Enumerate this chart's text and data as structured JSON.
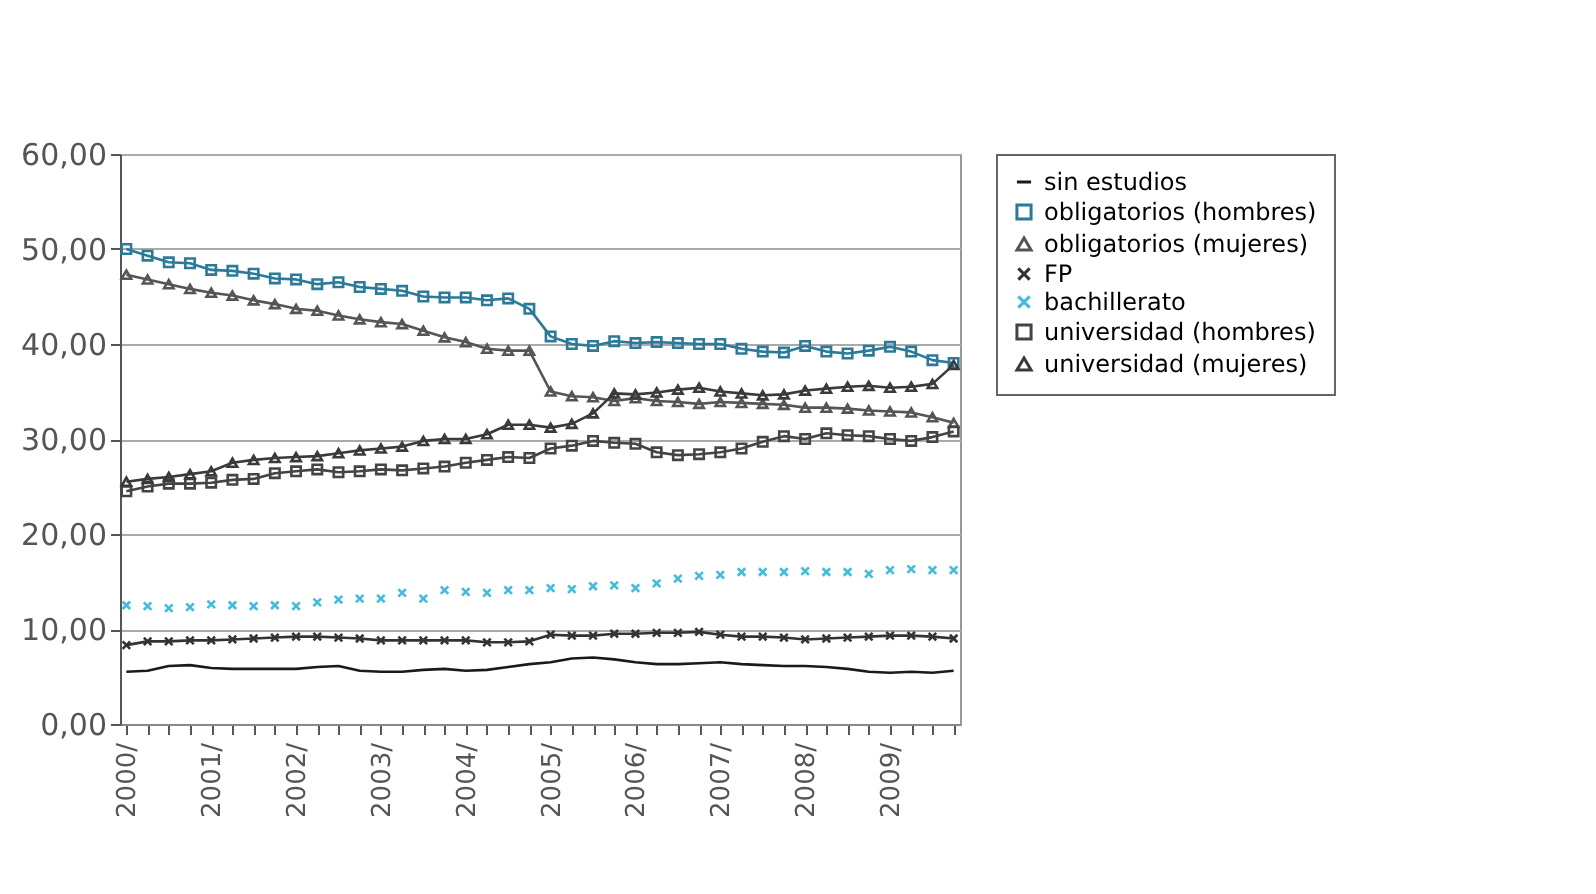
{
  "chart_data": {
    "type": "line",
    "categories": [
      "2000/",
      null,
      null,
      null,
      "2001/",
      null,
      null,
      null,
      "2002/",
      null,
      null,
      null,
      "2003/",
      null,
      null,
      null,
      "2004/",
      null,
      null,
      null,
      "2005/",
      null,
      null,
      null,
      "2006/",
      null,
      null,
      null,
      "2007/",
      null,
      null,
      null,
      "2008/",
      null,
      null,
      null,
      "2009/",
      null,
      null,
      null
    ],
    "series": [
      {
        "name": "sin estudios",
        "marker": "none",
        "color": "#1a1a1a",
        "values": [
          5.5,
          5.6,
          6.1,
          6.2,
          5.9,
          5.8,
          5.8,
          5.8,
          5.8,
          6.0,
          6.1,
          5.6,
          5.5,
          5.5,
          5.7,
          5.8,
          5.6,
          5.7,
          6.0,
          6.3,
          6.5,
          6.9,
          7.0,
          6.8,
          6.5,
          6.3,
          6.3,
          6.4,
          6.5,
          6.3,
          6.2,
          6.1,
          6.1,
          6.0,
          5.8,
          5.5,
          5.4,
          5.5,
          5.4,
          5.6
        ]
      },
      {
        "name": "obligatorios (hombres)",
        "marker": "square",
        "color": "#2b7a9a",
        "values": [
          50.0,
          49.3,
          48.6,
          48.5,
          47.8,
          47.7,
          47.4,
          46.9,
          46.8,
          46.3,
          46.5,
          46.0,
          45.8,
          45.6,
          45.0,
          44.9,
          44.9,
          44.6,
          44.8,
          43.7,
          40.8,
          40.0,
          39.8,
          40.3,
          40.1,
          40.2,
          40.1,
          40.0,
          40.0,
          39.5,
          39.2,
          39.1,
          39.8,
          39.2,
          39.0,
          39.3,
          39.7,
          39.2,
          38.3,
          38.0
        ]
      },
      {
        "name": "obligatorios (mujeres)",
        "marker": "triangle",
        "color": "#555555",
        "values": [
          47.3,
          46.8,
          46.3,
          45.8,
          45.4,
          45.1,
          44.6,
          44.2,
          43.7,
          43.5,
          43.0,
          42.6,
          42.3,
          42.1,
          41.4,
          40.7,
          40.2,
          39.5,
          39.3,
          39.3,
          35.0,
          34.5,
          34.4,
          34.0,
          34.3,
          34.0,
          33.9,
          33.7,
          33.9,
          33.8,
          33.7,
          33.6,
          33.3,
          33.3,
          33.2,
          33.0,
          32.9,
          32.8,
          32.3,
          31.7
        ]
      },
      {
        "name": "FP",
        "marker": "cross",
        "color": "#333333",
        "values": [
          8.3,
          8.7,
          8.7,
          8.8,
          8.8,
          8.9,
          9.0,
          9.1,
          9.2,
          9.2,
          9.1,
          9.0,
          8.8,
          8.8,
          8.8,
          8.8,
          8.8,
          8.6,
          8.6,
          8.7,
          9.4,
          9.3,
          9.3,
          9.5,
          9.5,
          9.6,
          9.6,
          9.7,
          9.4,
          9.2,
          9.2,
          9.1,
          8.9,
          9.0,
          9.1,
          9.2,
          9.3,
          9.3,
          9.2,
          9.0
        ]
      },
      {
        "name": "bachillerato",
        "type": "scatter",
        "marker": "cross",
        "color": "#3fbde0",
        "values": [
          12.5,
          12.4,
          12.2,
          12.3,
          12.6,
          12.5,
          12.4,
          12.5,
          12.4,
          12.8,
          13.1,
          13.2,
          13.2,
          13.8,
          13.2,
          14.1,
          13.9,
          13.8,
          14.1,
          14.1,
          14.3,
          14.2,
          14.5,
          14.6,
          14.3,
          14.8,
          15.3,
          15.6,
          15.7,
          16.0,
          16.0,
          16.0,
          16.1,
          16.0,
          16.0,
          15.8,
          16.2,
          16.3,
          16.2,
          16.2
        ]
      },
      {
        "name": "universidad (hombres)",
        "marker": "square",
        "color": "#444444",
        "values": [
          24.5,
          25.0,
          25.3,
          25.3,
          25.4,
          25.7,
          25.8,
          26.4,
          26.6,
          26.8,
          26.5,
          26.6,
          26.8,
          26.7,
          26.9,
          27.1,
          27.5,
          27.8,
          28.1,
          28.0,
          29.0,
          29.3,
          29.8,
          29.6,
          29.5,
          28.6,
          28.3,
          28.4,
          28.6,
          29.0,
          29.7,
          30.3,
          30.0,
          30.6,
          30.4,
          30.3,
          30.0,
          29.8,
          30.2,
          30.8
        ]
      },
      {
        "name": "universidad (mujeres)",
        "marker": "triangle",
        "color": "#3a3a3a",
        "values": [
          25.5,
          25.8,
          26.0,
          26.3,
          26.6,
          27.5,
          27.8,
          28.0,
          28.1,
          28.2,
          28.5,
          28.8,
          29.0,
          29.2,
          29.8,
          30.0,
          30.0,
          30.5,
          31.5,
          31.5,
          31.2,
          31.6,
          32.7,
          34.8,
          34.7,
          34.9,
          35.2,
          35.4,
          35.0,
          34.8,
          34.6,
          34.7,
          35.1,
          35.3,
          35.5,
          35.6,
          35.4,
          35.5,
          35.8,
          37.8
        ]
      }
    ],
    "ylim": [
      0,
      60
    ],
    "yticks": [
      {
        "value": 0,
        "label": "0,00"
      },
      {
        "value": 10,
        "label": "10,00"
      },
      {
        "value": 20,
        "label": "20,00"
      },
      {
        "value": 30,
        "label": "30,00"
      },
      {
        "value": 40,
        "label": "40,00"
      },
      {
        "value": 50,
        "label": "50,00"
      },
      {
        "value": 60,
        "label": "60,00"
      }
    ],
    "grid": "y",
    "legend": "right"
  }
}
